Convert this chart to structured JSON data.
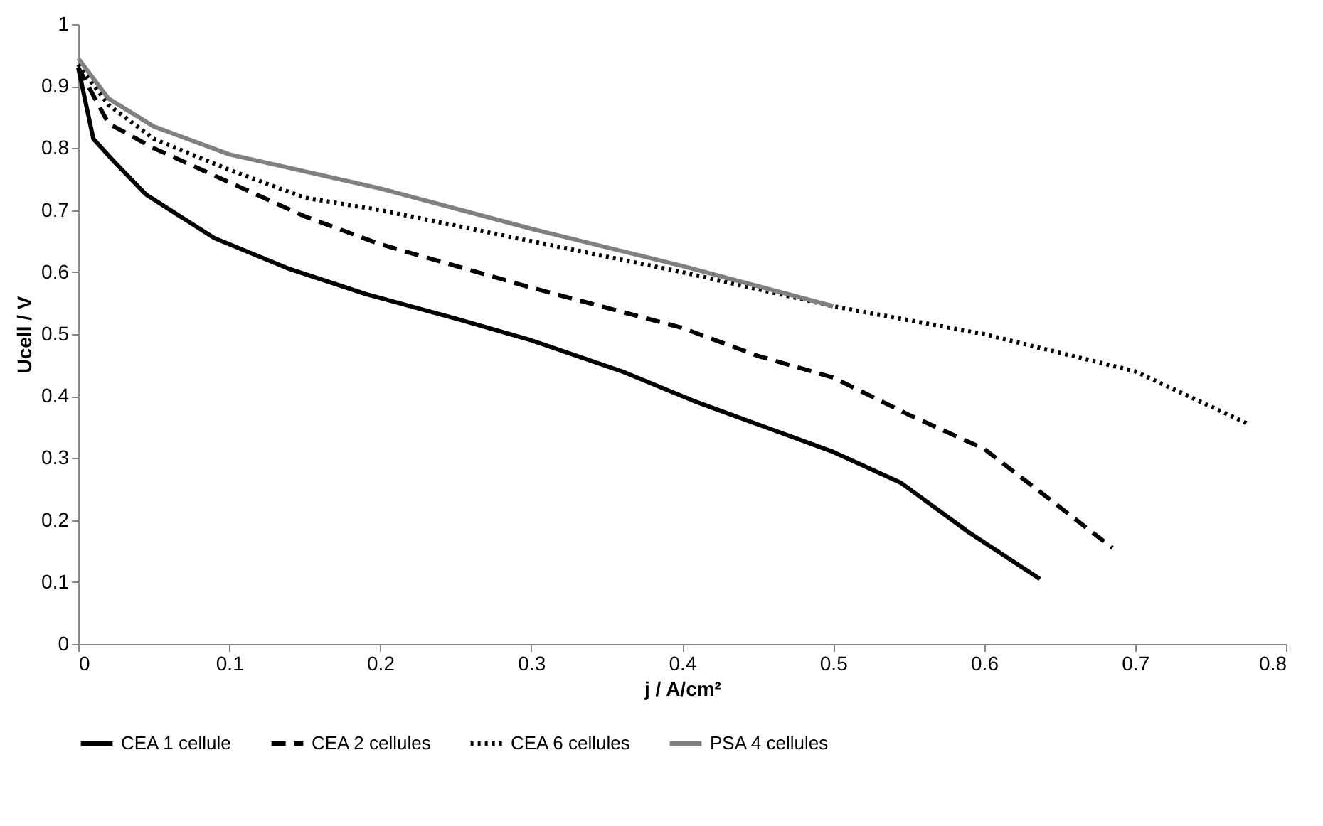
{
  "chart_data": {
    "type": "line",
    "xlabel": "j / A/cm²",
    "ylabel": "Ucell / V",
    "xlim": [
      0,
      0.8
    ],
    "xticks": [
      0,
      0.1,
      0.2,
      0.3,
      0.4,
      0.5,
      0.6,
      0.7,
      0.8
    ],
    "ylim": [
      0,
      1
    ],
    "yticks": [
      0,
      0.1,
      0.2,
      0.3,
      0.4,
      0.5,
      0.6,
      0.7,
      0.8,
      0.9,
      1
    ],
    "grid": false,
    "legend": "bottom",
    "marker": "none",
    "series": [
      {
        "name": "CEA 1 cellule",
        "color": "#000000",
        "line_style": "solid",
        "x": [
          0,
          0.01,
          0.025,
          0.045,
          0.09,
          0.14,
          0.19,
          0.25,
          0.3,
          0.36,
          0.41,
          0.455,
          0.5,
          0.545,
          0.59,
          0.637
        ],
        "values": [
          0.93,
          0.815,
          0.775,
          0.725,
          0.655,
          0.605,
          0.565,
          0.525,
          0.49,
          0.44,
          0.39,
          0.35,
          0.31,
          0.26,
          0.18,
          0.105
        ]
      },
      {
        "name": "CEA 2 cellules",
        "color": "#000000",
        "line_style": "dashed",
        "x": [
          0,
          0.02,
          0.05,
          0.1,
          0.15,
          0.2,
          0.3,
          0.4,
          0.45,
          0.5,
          0.55,
          0.6,
          0.64,
          0.685
        ],
        "values": [
          0.93,
          0.84,
          0.8,
          0.745,
          0.69,
          0.645,
          0.575,
          0.51,
          0.465,
          0.43,
          0.37,
          0.315,
          0.24,
          0.155
        ]
      },
      {
        "name": "CEA 6 cellules",
        "color": "#000000",
        "line_style": "dotted",
        "x": [
          0,
          0.02,
          0.05,
          0.1,
          0.15,
          0.2,
          0.3,
          0.4,
          0.5,
          0.6,
          0.7,
          0.775
        ],
        "values": [
          0.935,
          0.87,
          0.815,
          0.765,
          0.72,
          0.7,
          0.65,
          0.6,
          0.545,
          0.5,
          0.44,
          0.355
        ]
      },
      {
        "name": "PSA 4 cellules",
        "color": "#808080",
        "line_style": "solid",
        "x": [
          0,
          0.02,
          0.05,
          0.1,
          0.2,
          0.3,
          0.4,
          0.5
        ],
        "values": [
          0.945,
          0.88,
          0.835,
          0.79,
          0.735,
          0.67,
          0.61,
          0.545
        ]
      }
    ]
  }
}
